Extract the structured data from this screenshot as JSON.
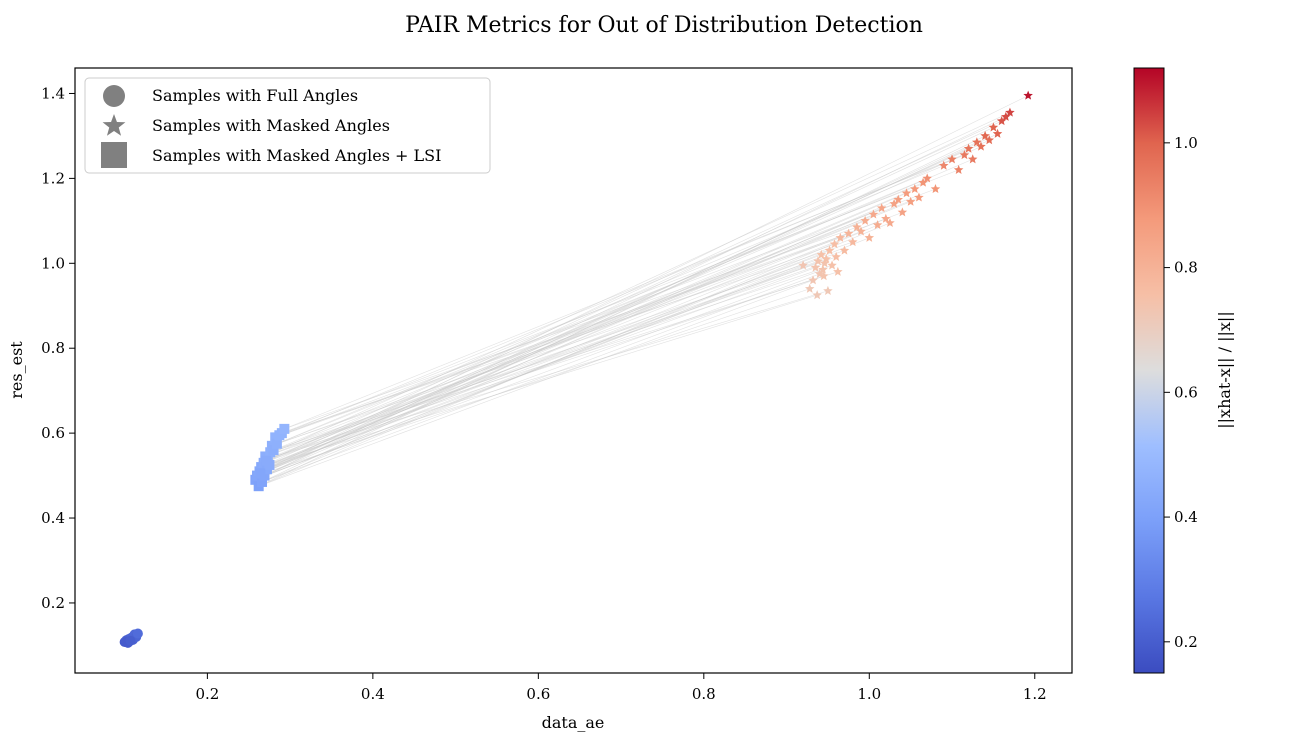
{
  "chart_data": {
    "type": "scatter",
    "title": "PAIR Metrics for Out of Distribution Detection",
    "xlabel": "data_ae",
    "ylabel": "res_est",
    "xlim": [
      0.04,
      1.245
    ],
    "ylim": [
      0.035,
      1.46
    ],
    "x_ticks": [
      0.2,
      0.4,
      0.6,
      0.8,
      1.0,
      1.2
    ],
    "x_tick_labels": [
      "0.2",
      "0.4",
      "0.6",
      "0.8",
      "1.0",
      "1.2"
    ],
    "y_ticks": [
      0.2,
      0.4,
      0.6,
      0.8,
      1.0,
      1.2,
      1.4
    ],
    "y_tick_labels": [
      "0.2",
      "0.4",
      "0.6",
      "0.8",
      "1.0",
      "1.2",
      "1.4"
    ],
    "grid": false,
    "legend_position": "top-left",
    "legend": [
      {
        "label": "Samples with Full Angles",
        "marker": "circle"
      },
      {
        "label": "Samples with Masked Angles",
        "marker": "star"
      },
      {
        "label": "Samples with Masked Angles + LSI",
        "marker": "square"
      }
    ],
    "colorbar": {
      "label": "||xhat-x|| / ||x||",
      "min": 0.15,
      "max": 1.12,
      "ticks": [
        0.2,
        0.4,
        0.6,
        0.8,
        1.0
      ],
      "tick_labels": [
        "0.2",
        "0.4",
        "0.6",
        "0.8",
        "1.0"
      ],
      "colormap": "coolwarm"
    },
    "connector_color": "#c8c8c8",
    "series": [
      {
        "name": "Samples with Full Angles",
        "marker": "circle",
        "x": [
          0.1,
          0.102,
          0.104,
          0.105,
          0.106,
          0.108,
          0.11,
          0.112,
          0.114,
          0.116,
          0.103,
          0.107
        ],
        "y": [
          0.108,
          0.112,
          0.106,
          0.115,
          0.11,
          0.118,
          0.113,
          0.126,
          0.12,
          0.128,
          0.109,
          0.111
        ],
        "c": [
          0.19,
          0.2,
          0.19,
          0.21,
          0.2,
          0.22,
          0.21,
          0.23,
          0.22,
          0.24,
          0.19,
          0.2
        ]
      },
      {
        "name": "Samples with Masked Angles + LSI",
        "marker": "square",
        "x": [
          0.258,
          0.26,
          0.262,
          0.263,
          0.265,
          0.266,
          0.268,
          0.269,
          0.27,
          0.272,
          0.273,
          0.275,
          0.276,
          0.278,
          0.28,
          0.282,
          0.284,
          0.287,
          0.29,
          0.293,
          0.264,
          0.271
        ],
        "y": [
          0.49,
          0.5,
          0.475,
          0.51,
          0.52,
          0.485,
          0.53,
          0.5,
          0.545,
          0.515,
          0.54,
          0.525,
          0.555,
          0.57,
          0.56,
          0.59,
          0.575,
          0.595,
          0.6,
          0.61,
          0.505,
          0.535
        ],
        "c": [
          0.41,
          0.42,
          0.4,
          0.43,
          0.43,
          0.41,
          0.44,
          0.42,
          0.45,
          0.43,
          0.45,
          0.44,
          0.46,
          0.46,
          0.45,
          0.47,
          0.46,
          0.47,
          0.47,
          0.48,
          0.42,
          0.44
        ]
      },
      {
        "name": "Samples with Masked Angles",
        "marker": "star",
        "x": [
          0.92,
          0.928,
          0.932,
          0.935,
          0.938,
          0.94,
          0.942,
          0.944,
          0.946,
          0.948,
          0.95,
          0.952,
          0.955,
          0.958,
          0.96,
          0.965,
          0.97,
          0.975,
          0.98,
          0.985,
          0.99,
          0.995,
          1.0,
          1.005,
          1.01,
          1.015,
          1.02,
          1.025,
          1.03,
          1.035,
          1.04,
          1.045,
          1.05,
          1.055,
          1.06,
          1.065,
          1.07,
          1.08,
          1.09,
          1.1,
          1.108,
          1.115,
          1.12,
          1.125,
          1.13,
          1.135,
          1.14,
          1.145,
          1.15,
          1.155,
          1.16,
          1.165,
          1.17,
          1.192,
          0.945,
          0.937,
          0.962
        ],
        "y": [
          0.995,
          0.94,
          0.96,
          0.99,
          1.005,
          0.975,
          1.02,
          0.985,
          1.0,
          1.01,
          0.935,
          1.03,
          0.995,
          1.045,
          1.015,
          1.06,
          1.03,
          1.07,
          1.05,
          1.085,
          1.075,
          1.1,
          1.06,
          1.115,
          1.09,
          1.13,
          1.105,
          1.095,
          1.14,
          1.15,
          1.12,
          1.165,
          1.145,
          1.175,
          1.155,
          1.19,
          1.2,
          1.175,
          1.23,
          1.245,
          1.22,
          1.255,
          1.27,
          1.245,
          1.285,
          1.275,
          1.3,
          1.29,
          1.32,
          1.305,
          1.335,
          1.345,
          1.355,
          1.395,
          0.97,
          0.925,
          0.98
        ],
        "c": [
          0.73,
          0.72,
          0.73,
          0.74,
          0.74,
          0.73,
          0.75,
          0.74,
          0.74,
          0.75,
          0.72,
          0.76,
          0.75,
          0.76,
          0.76,
          0.78,
          0.77,
          0.79,
          0.78,
          0.8,
          0.8,
          0.82,
          0.8,
          0.83,
          0.82,
          0.84,
          0.83,
          0.83,
          0.85,
          0.86,
          0.85,
          0.87,
          0.86,
          0.88,
          0.87,
          0.89,
          0.9,
          0.89,
          0.92,
          0.94,
          0.93,
          0.95,
          0.96,
          0.95,
          0.97,
          0.97,
          0.99,
          0.98,
          1.0,
          1.0,
          1.02,
          1.03,
          1.04,
          1.1,
          0.74,
          0.72,
          0.75
        ]
      }
    ]
  }
}
